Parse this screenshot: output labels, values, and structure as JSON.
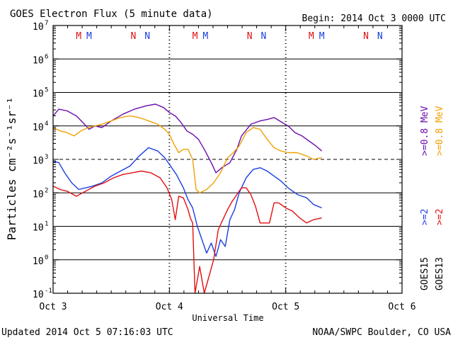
{
  "header": {
    "title": "GOES Electron Flux (5 minute data)",
    "begin": "Begin: 2014 Oct 3 0000 UTC"
  },
  "footer": {
    "updated": "Updated 2014 Oct  5 07:16:03 UTC",
    "credit": "NOAA/SWPC Boulder, CO USA"
  },
  "colors": {
    "goes15_08": "#6a0dad",
    "goes13_08": "#f0a000",
    "goes15_2": "#1a3ee0",
    "goes13_2": "#e01010",
    "marker_m": "#e01010",
    "marker_n": "#1a3ee0"
  },
  "chart_data": {
    "type": "line",
    "title": "GOES Electron Flux (5 minute data)",
    "xlabel": "Universal Time",
    "ylabel": "Particles cm⁻²s⁻¹sr⁻¹",
    "xlim": [
      0,
      3
    ],
    "ylim_exponent": [
      -1,
      7
    ],
    "y_scale": "log",
    "grid": "horizontal at each decade; dashed at 10^3",
    "x_ticks": [
      {
        "x": 0,
        "label": "Oct 3"
      },
      {
        "x": 1,
        "label": "Oct 4"
      },
      {
        "x": 2,
        "label": "Oct 5"
      },
      {
        "x": 3,
        "label": "Oct 6"
      }
    ],
    "y_ticks": [
      {
        "exp": 7,
        "label": "10",
        "sup": "7"
      },
      {
        "exp": 6,
        "label": "10",
        "sup": "6"
      },
      {
        "exp": 5,
        "label": "10",
        "sup": "5"
      },
      {
        "exp": 4,
        "label": "10",
        "sup": "4"
      },
      {
        "exp": 3,
        "label": "10",
        "sup": "3"
      },
      {
        "exp": 2,
        "label": "10",
        "sup": "2"
      },
      {
        "exp": 1,
        "label": "10",
        "sup": "1"
      },
      {
        "exp": 0,
        "label": "10",
        "sup": "0"
      },
      {
        "exp": -1,
        "label": "10",
        "sup": "-1"
      }
    ],
    "legend": {
      "placement": "right, rotated",
      "entries": [
        {
          "sat": "GOES15",
          "energy": ">=2",
          "energy_high": ">=0.8 MeV"
        },
        {
          "sat": "GOES13",
          "energy": ">=2",
          "energy_high": ">=0.8 MeV"
        }
      ]
    },
    "markers": [
      {
        "x": 0.22,
        "label": "M",
        "kind": "m"
      },
      {
        "x": 0.31,
        "label": "M",
        "kind": "n"
      },
      {
        "x": 0.69,
        "label": "N",
        "kind": "m"
      },
      {
        "x": 0.81,
        "label": "N",
        "kind": "n"
      },
      {
        "x": 1.22,
        "label": "M",
        "kind": "m"
      },
      {
        "x": 1.31,
        "label": "M",
        "kind": "n"
      },
      {
        "x": 1.69,
        "label": "N",
        "kind": "m"
      },
      {
        "x": 1.81,
        "label": "N",
        "kind": "n"
      },
      {
        "x": 2.22,
        "label": "M",
        "kind": "m"
      },
      {
        "x": 2.31,
        "label": "M",
        "kind": "n"
      },
      {
        "x": 2.69,
        "label": "N",
        "kind": "m"
      },
      {
        "x": 2.81,
        "label": "N",
        "kind": "n"
      }
    ],
    "day_boundaries": [
      1,
      2
    ],
    "series": [
      {
        "name": "GOES15 >=0.8 MeV",
        "color_key": "goes15_08",
        "points": [
          [
            0,
            4.3
          ],
          [
            0.05,
            4.5
          ],
          [
            0.12,
            4.45
          ],
          [
            0.2,
            4.3
          ],
          [
            0.27,
            4.05
          ],
          [
            0.31,
            3.9
          ],
          [
            0.36,
            4.0
          ],
          [
            0.42,
            3.95
          ],
          [
            0.5,
            4.15
          ],
          [
            0.6,
            4.35
          ],
          [
            0.7,
            4.5
          ],
          [
            0.8,
            4.6
          ],
          [
            0.88,
            4.65
          ],
          [
            0.95,
            4.55
          ],
          [
            1.0,
            4.4
          ],
          [
            1.05,
            4.3
          ],
          [
            1.1,
            4.1
          ],
          [
            1.15,
            3.85
          ],
          [
            1.2,
            3.75
          ],
          [
            1.25,
            3.6
          ],
          [
            1.3,
            3.3
          ],
          [
            1.36,
            2.9
          ],
          [
            1.4,
            2.6
          ],
          [
            1.45,
            2.75
          ],
          [
            1.52,
            2.9
          ],
          [
            1.58,
            3.3
          ],
          [
            1.62,
            3.7
          ],
          [
            1.7,
            4.05
          ],
          [
            1.78,
            4.15
          ],
          [
            1.85,
            4.2
          ],
          [
            1.9,
            4.25
          ],
          [
            1.97,
            4.1
          ],
          [
            2.02,
            4.0
          ],
          [
            2.08,
            3.8
          ],
          [
            2.14,
            3.7
          ],
          [
            2.2,
            3.55
          ],
          [
            2.26,
            3.4
          ],
          [
            2.31,
            3.25
          ]
        ]
      },
      {
        "name": "GOES13 >=0.8 MeV",
        "color_key": "goes13_08",
        "points": [
          [
            0,
            3.95
          ],
          [
            0.06,
            3.85
          ],
          [
            0.12,
            3.8
          ],
          [
            0.18,
            3.7
          ],
          [
            0.24,
            3.85
          ],
          [
            0.3,
            3.95
          ],
          [
            0.36,
            4.0
          ],
          [
            0.42,
            4.05
          ],
          [
            0.5,
            4.15
          ],
          [
            0.58,
            4.25
          ],
          [
            0.66,
            4.3
          ],
          [
            0.74,
            4.25
          ],
          [
            0.82,
            4.15
          ],
          [
            0.9,
            4.05
          ],
          [
            0.96,
            3.9
          ],
          [
            1.0,
            3.75
          ],
          [
            1.04,
            3.45
          ],
          [
            1.08,
            3.2
          ],
          [
            1.12,
            3.3
          ],
          [
            1.16,
            3.3
          ],
          [
            1.2,
            3.0
          ],
          [
            1.23,
            2.1
          ],
          [
            1.26,
            2.0
          ],
          [
            1.32,
            2.1
          ],
          [
            1.38,
            2.3
          ],
          [
            1.44,
            2.6
          ],
          [
            1.5,
            3.05
          ],
          [
            1.55,
            3.2
          ],
          [
            1.6,
            3.4
          ],
          [
            1.66,
            3.8
          ],
          [
            1.72,
            3.95
          ],
          [
            1.78,
            3.9
          ],
          [
            1.84,
            3.6
          ],
          [
            1.9,
            3.35
          ],
          [
            1.96,
            3.25
          ],
          [
            2.02,
            3.2
          ],
          [
            2.1,
            3.2
          ],
          [
            2.18,
            3.1
          ],
          [
            2.24,
            3.0
          ],
          [
            2.31,
            3.05
          ]
        ]
      },
      {
        "name": "GOES15 >=2 MeV",
        "color_key": "goes15_2",
        "points": [
          [
            0,
            2.95
          ],
          [
            0.05,
            2.9
          ],
          [
            0.1,
            2.6
          ],
          [
            0.16,
            2.3
          ],
          [
            0.22,
            2.1
          ],
          [
            0.28,
            2.15
          ],
          [
            0.34,
            2.2
          ],
          [
            0.42,
            2.3
          ],
          [
            0.5,
            2.5
          ],
          [
            0.58,
            2.65
          ],
          [
            0.66,
            2.8
          ],
          [
            0.74,
            3.1
          ],
          [
            0.82,
            3.35
          ],
          [
            0.9,
            3.25
          ],
          [
            0.96,
            3.05
          ],
          [
            1.0,
            2.85
          ],
          [
            1.06,
            2.55
          ],
          [
            1.12,
            2.15
          ],
          [
            1.16,
            1.8
          ],
          [
            1.2,
            1.55
          ],
          [
            1.24,
            1.0
          ],
          [
            1.28,
            0.6
          ],
          [
            1.32,
            0.2
          ],
          [
            1.36,
            0.5
          ],
          [
            1.4,
            0.1
          ],
          [
            1.44,
            0.6
          ],
          [
            1.48,
            0.4
          ],
          [
            1.52,
            1.2
          ],
          [
            1.56,
            1.5
          ],
          [
            1.6,
            2.0
          ],
          [
            1.66,
            2.45
          ],
          [
            1.72,
            2.7
          ],
          [
            1.78,
            2.75
          ],
          [
            1.84,
            2.65
          ],
          [
            1.9,
            2.5
          ],
          [
            1.96,
            2.35
          ],
          [
            2.02,
            2.15
          ],
          [
            2.1,
            1.95
          ],
          [
            2.18,
            1.85
          ],
          [
            2.24,
            1.65
          ],
          [
            2.31,
            1.55
          ]
        ]
      },
      {
        "name": "GOES13 >=2 MeV",
        "color_key": "goes13_2",
        "points": [
          [
            0,
            2.2
          ],
          [
            0.06,
            2.1
          ],
          [
            0.12,
            2.05
          ],
          [
            0.2,
            1.9
          ],
          [
            0.28,
            2.05
          ],
          [
            0.36,
            2.2
          ],
          [
            0.44,
            2.3
          ],
          [
            0.52,
            2.45
          ],
          [
            0.6,
            2.55
          ],
          [
            0.68,
            2.6
          ],
          [
            0.76,
            2.65
          ],
          [
            0.84,
            2.6
          ],
          [
            0.92,
            2.45
          ],
          [
            0.98,
            2.15
          ],
          [
            1.02,
            1.8
          ],
          [
            1.05,
            1.2
          ],
          [
            1.08,
            1.9
          ],
          [
            1.12,
            1.85
          ],
          [
            1.16,
            1.5
          ],
          [
            1.18,
            1.25
          ],
          [
            1.2,
            1.1
          ],
          [
            1.22,
            -1.0
          ],
          [
            1.26,
            -0.2
          ],
          [
            1.3,
            -1.0
          ],
          [
            1.34,
            -0.5
          ],
          [
            1.38,
            0.0
          ],
          [
            1.42,
            0.9
          ],
          [
            1.46,
            1.2
          ],
          [
            1.5,
            1.5
          ],
          [
            1.54,
            1.75
          ],
          [
            1.58,
            1.95
          ],
          [
            1.62,
            2.15
          ],
          [
            1.66,
            2.15
          ],
          [
            1.7,
            1.95
          ],
          [
            1.74,
            1.6
          ],
          [
            1.78,
            1.1
          ],
          [
            1.82,
            1.1
          ],
          [
            1.86,
            1.1
          ],
          [
            1.9,
            1.7
          ],
          [
            1.94,
            1.7
          ],
          [
            2.0,
            1.55
          ],
          [
            2.06,
            1.45
          ],
          [
            2.12,
            1.25
          ],
          [
            2.18,
            1.1
          ],
          [
            2.24,
            1.2
          ],
          [
            2.31,
            1.25
          ]
        ]
      }
    ]
  }
}
